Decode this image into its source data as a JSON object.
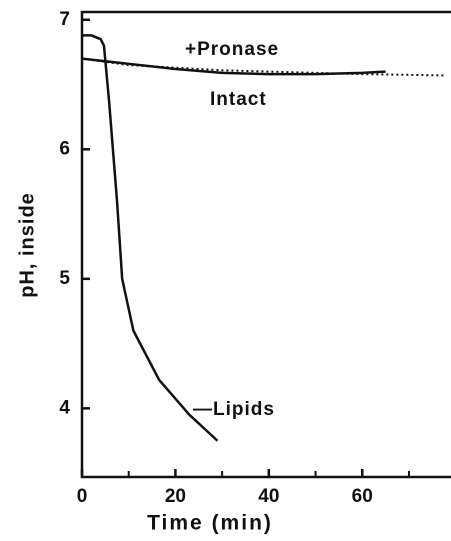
{
  "chart_data": {
    "type": "line",
    "xlabel": "Time (min)",
    "ylabel": "pH, inside",
    "xlim": [
      0,
      79
    ],
    "xticks": [
      0,
      20,
      40,
      60
    ],
    "xminorticks": [
      10,
      30,
      50,
      70
    ],
    "ylim": [
      3.47,
      7.06
    ],
    "yticks": [
      4,
      5,
      6,
      7
    ],
    "series": [
      {
        "name": "+Pronase",
        "color": "#111111",
        "dash": "dotted",
        "x": [
          0,
          10,
          20,
          30,
          40,
          50,
          60,
          70,
          78
        ],
        "values": [
          6.7,
          6.65,
          6.63,
          6.61,
          6.6,
          6.59,
          6.58,
          6.575,
          6.57
        ]
      },
      {
        "name": "Intact",
        "color": "#111111",
        "dash": "solid",
        "x": [
          0,
          10,
          20,
          30,
          40,
          50,
          60,
          65
        ],
        "values": [
          6.7,
          6.66,
          6.62,
          6.59,
          6.58,
          6.58,
          6.59,
          6.6
        ]
      },
      {
        "name": "—Lipids",
        "color": "#111111",
        "dash": "solid",
        "x": [
          0,
          2,
          4,
          4.7,
          5.8,
          7.5,
          8.6,
          11,
          16.5,
          23,
          29
        ],
        "values": [
          6.88,
          6.88,
          6.85,
          6.8,
          6.37,
          5.6,
          5.0,
          4.6,
          4.22,
          3.95,
          3.75
        ]
      }
    ]
  }
}
